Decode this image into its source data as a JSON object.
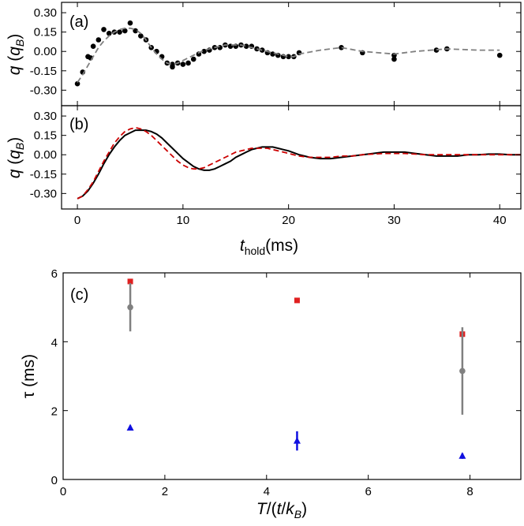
{
  "chart_data": [
    {
      "type": "scatter",
      "panel_label": "(a)",
      "ylabel": "q (q_B)",
      "ylabel_parts": {
        "q": "q",
        "open": " (",
        "qb": "q",
        "sub": "B",
        "close": ")"
      },
      "xlim": [
        -1.5,
        42
      ],
      "ylim": [
        -0.42,
        0.38
      ],
      "yticks": [
        "0.30",
        "0.15",
        "0.00",
        "-0.15",
        "-0.30"
      ],
      "ytick_values": [
        0.3,
        0.15,
        0.0,
        -0.15,
        -0.3
      ],
      "xticks": [
        0,
        10,
        20,
        30,
        40
      ],
      "series": [
        {
          "kind": "points",
          "color": "#000000",
          "x": [
            0,
            0.5,
            1,
            1.25,
            1.5,
            2.0,
            2.5,
            3.0,
            3.5,
            4.0,
            4.5,
            5.0,
            5.5,
            6.0,
            6.5,
            7.0,
            7.5,
            8.0,
            8.5,
            9.0,
            9.0,
            9.5,
            10.0,
            10.5,
            11.0,
            11.5,
            12.0,
            12.5,
            13.0,
            13.5,
            14.0,
            14.5,
            15.0,
            15.5,
            16.0,
            16.5,
            17.0,
            17.5,
            18.0,
            18.5,
            19.0,
            19.5,
            20.0,
            20.5,
            21.0,
            25.0,
            27.0,
            30.0,
            30.0,
            34.0,
            35.0,
            40.0
          ],
          "y": [
            -0.25,
            -0.16,
            -0.04,
            -0.05,
            0.04,
            0.09,
            0.17,
            0.14,
            0.15,
            0.15,
            0.16,
            0.22,
            0.16,
            0.12,
            0.09,
            0.03,
            0.0,
            -0.04,
            -0.09,
            -0.12,
            -0.1,
            -0.09,
            -0.1,
            -0.09,
            -0.06,
            -0.02,
            0.0,
            0.01,
            0.03,
            0.03,
            0.05,
            0.04,
            0.04,
            0.05,
            0.04,
            0.04,
            0.02,
            0.01,
            -0.01,
            -0.02,
            -0.03,
            -0.04,
            -0.04,
            -0.04,
            -0.01,
            0.03,
            -0.01,
            -0.03,
            -0.06,
            0.01,
            0.02,
            -0.03
          ]
        },
        {
          "kind": "dashed-line",
          "color": "#808080",
          "x": [
            0,
            0.5,
            1,
            1.5,
            2,
            2.5,
            3,
            3.5,
            4,
            4.5,
            5,
            5.5,
            6,
            6.5,
            7,
            7.5,
            8,
            8.5,
            9,
            9.5,
            10,
            10.5,
            11,
            11.5,
            12,
            12.5,
            13,
            13.5,
            14,
            14.5,
            15,
            15.5,
            16,
            16.5,
            17,
            17.5,
            18,
            18.5,
            19,
            19.5,
            20,
            20.5,
            21,
            23,
            25,
            27,
            30,
            32,
            35,
            38,
            40
          ],
          "y": [
            -0.24,
            -0.18,
            -0.11,
            -0.04,
            0.03,
            0.08,
            0.12,
            0.15,
            0.17,
            0.18,
            0.18,
            0.17,
            0.14,
            0.09,
            0.03,
            -0.02,
            -0.06,
            -0.09,
            -0.1,
            -0.09,
            -0.07,
            -0.05,
            -0.03,
            -0.01,
            0.01,
            0.02,
            0.03,
            0.04,
            0.05,
            0.05,
            0.05,
            0.05,
            0.04,
            0.03,
            0.02,
            0.01,
            0.0,
            -0.01,
            -0.02,
            -0.03,
            -0.04,
            -0.04,
            -0.02,
            0.01,
            0.03,
            0.0,
            -0.02,
            0.0,
            0.02,
            0.01,
            0.01
          ]
        }
      ]
    },
    {
      "type": "line",
      "panel_label": "(b)",
      "ylabel": "q (q_B)",
      "ylabel_parts": {
        "q": "q",
        "open": " (",
        "qb": "q",
        "sub": "B",
        "close": ")"
      },
      "xlabel": "t_hold(ms)",
      "xlabel_parts": {
        "t": "t",
        "sub": "hold",
        "unit": "(ms)"
      },
      "xlim": [
        -1.5,
        42
      ],
      "ylim": [
        -0.42,
        0.38
      ],
      "yticks": [
        "0.30",
        "0.15",
        "0.00",
        "-0.15",
        "-0.30"
      ],
      "ytick_values": [
        0.3,
        0.15,
        0.0,
        -0.15,
        -0.3
      ],
      "xticks": [
        "0",
        "10",
        "20",
        "30",
        "40"
      ],
      "xtick_values": [
        0,
        10,
        20,
        30,
        40
      ],
      "series": [
        {
          "kind": "solid-line",
          "color": "#000000",
          "x": [
            0,
            0.5,
            1,
            1.5,
            2,
            2.5,
            3,
            3.5,
            4,
            4.5,
            5,
            5.5,
            6,
            6.5,
            7,
            7.5,
            8,
            8.5,
            9,
            9.5,
            10,
            10.5,
            11,
            11.5,
            12,
            12.5,
            13,
            13.5,
            14,
            14.5,
            15,
            15.5,
            16,
            16.5,
            17,
            17.5,
            18,
            18.5,
            19,
            19.5,
            20,
            21,
            22,
            23,
            24,
            25,
            26,
            27,
            28,
            29,
            30,
            31,
            32,
            33,
            34,
            35,
            36,
            37,
            38,
            39,
            40,
            41,
            42
          ],
          "y": [
            -0.34,
            -0.32,
            -0.28,
            -0.22,
            -0.15,
            -0.07,
            0.0,
            0.06,
            0.11,
            0.15,
            0.17,
            0.19,
            0.19,
            0.19,
            0.18,
            0.16,
            0.13,
            0.09,
            0.05,
            0.01,
            -0.03,
            -0.06,
            -0.09,
            -0.11,
            -0.12,
            -0.12,
            -0.11,
            -0.09,
            -0.07,
            -0.05,
            -0.02,
            0.0,
            0.02,
            0.04,
            0.05,
            0.06,
            0.06,
            0.06,
            0.05,
            0.04,
            0.03,
            0.0,
            -0.02,
            -0.03,
            -0.03,
            -0.02,
            -0.01,
            0.0,
            0.01,
            0.02,
            0.02,
            0.02,
            0.01,
            0.0,
            -0.01,
            -0.01,
            -0.01,
            0.0,
            0.0,
            0.005,
            0.005,
            0.0,
            0.0
          ]
        },
        {
          "kind": "dashed-line",
          "color": "#cc0000",
          "x": [
            0,
            0.5,
            1,
            1.5,
            2,
            2.5,
            3,
            3.5,
            4,
            4.5,
            5,
            5.5,
            6,
            6.5,
            7,
            7.5,
            8,
            8.5,
            9,
            9.5,
            10,
            10.5,
            11,
            11.5,
            12,
            12.5,
            13,
            13.5,
            14,
            14.5,
            15,
            15.5,
            16,
            16.5,
            17,
            17.5,
            18,
            18.5,
            19,
            19.5,
            20,
            21,
            22,
            23,
            24,
            25,
            26,
            27,
            28,
            29,
            30,
            31,
            32,
            33,
            34,
            35,
            36,
            37,
            38,
            39,
            40,
            41,
            42
          ],
          "y": [
            -0.34,
            -0.32,
            -0.27,
            -0.21,
            -0.13,
            -0.05,
            0.02,
            0.09,
            0.14,
            0.18,
            0.2,
            0.21,
            0.2,
            0.18,
            0.15,
            0.11,
            0.07,
            0.03,
            -0.01,
            -0.05,
            -0.08,
            -0.1,
            -0.11,
            -0.11,
            -0.1,
            -0.08,
            -0.06,
            -0.04,
            -0.02,
            0.0,
            0.02,
            0.03,
            0.04,
            0.05,
            0.05,
            0.05,
            0.05,
            0.04,
            0.03,
            0.02,
            0.01,
            -0.01,
            -0.02,
            -0.02,
            -0.02,
            -0.01,
            -0.01,
            0.0,
            0.005,
            0.01,
            0.01,
            0.01,
            0.005,
            0.0,
            0.0,
            0.0,
            0.0,
            0.0,
            0.0,
            0.0,
            0.0,
            0.0,
            0.0
          ]
        }
      ]
    },
    {
      "type": "scatter",
      "panel_label": "(c)",
      "ylabel": "τ (ms)",
      "xlabel": "T/(t/k_B)",
      "xlabel_parts": {
        "T": "T",
        "slash": "/(",
        "t": "t",
        "slash2": "/",
        "k": "k",
        "sub": "B",
        "close": ")"
      },
      "xlim": [
        0,
        9
      ],
      "ylim": [
        0,
        6
      ],
      "xticks": [
        "0",
        "2",
        "4",
        "6",
        "8"
      ],
      "xtick_values": [
        0,
        2,
        4,
        6,
        8
      ],
      "yticks": [
        "0",
        "2",
        "4",
        "6"
      ],
      "ytick_values": [
        0,
        2,
        4,
        6
      ],
      "series": [
        {
          "marker": "square",
          "color": "#e02020",
          "x": [
            1.32,
            4.6,
            7.85
          ],
          "y": [
            5.75,
            5.2,
            4.22
          ],
          "err": [
            0.07,
            0.06,
            0.08
          ]
        },
        {
          "marker": "circle",
          "color": "#808080",
          "x": [
            1.32,
            7.85
          ],
          "y": [
            5.0,
            3.15
          ],
          "err": [
            0.7,
            1.27
          ]
        },
        {
          "marker": "triangle",
          "color": "#1010e0",
          "x": [
            1.32,
            4.6,
            7.85
          ],
          "y": [
            1.5,
            1.12,
            0.68
          ],
          "err": [
            0.07,
            0.28,
            0.08
          ]
        }
      ]
    }
  ]
}
